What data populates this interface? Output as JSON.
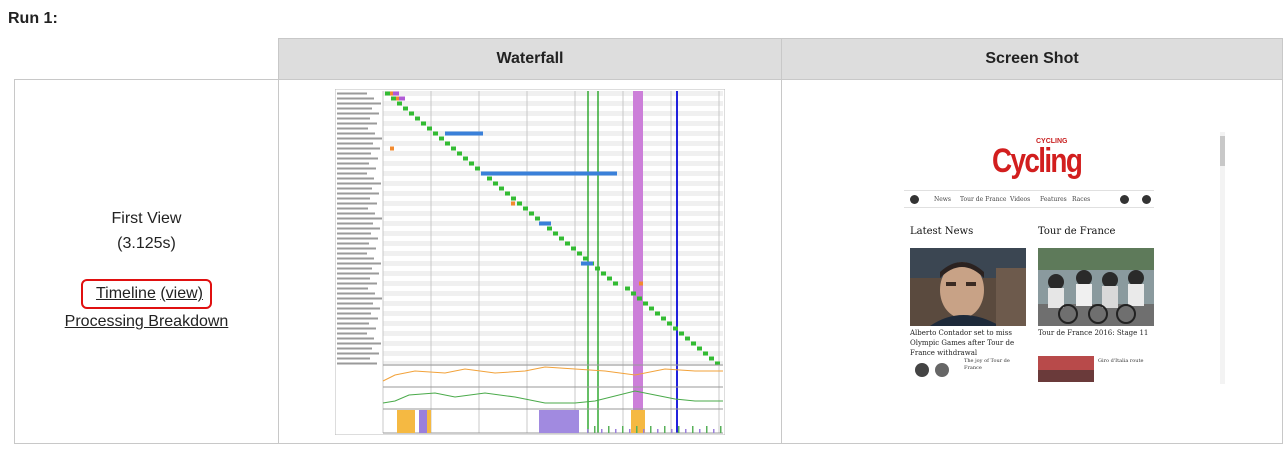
{
  "run": {
    "title": "Run 1:"
  },
  "table": {
    "headers": {
      "waterfall": "Waterfall",
      "screenshot": "Screen Shot"
    }
  },
  "first_view": {
    "label": "First View",
    "time": "(3.125s)",
    "timeline_link": "Timeline",
    "view_link": "(view)",
    "processing_link": "Processing Breakdown"
  },
  "waterfall": {
    "rows": 55,
    "colors": {
      "dns": "#2e9e8e",
      "connect": "#f28a2e",
      "ssl": "#b05bd6",
      "ttfb": "#33bb33",
      "download": "#3a80d9",
      "start_render": "#33aa33",
      "dom_content": "#cc7fd9",
      "onload": "#2222dd",
      "cpu": "#f5b942",
      "bandwidth": "#58b05a"
    }
  },
  "screenshot": {
    "logo_small": "CYCLING",
    "logo_big": "Cycling",
    "nav": [
      "News",
      "Tour de France",
      "Videos",
      "Features",
      "Races"
    ],
    "sections": {
      "latest": "Latest News",
      "tour": "Tour de France"
    },
    "captions": {
      "latest": "Alberto Contador set to miss Olympic Games after Tour de France withdrawal",
      "tour": "Tour de France 2016: Stage 11"
    },
    "mini_items": [
      "The joy of Tour de France",
      "Giro d'Italia route"
    ],
    "colors": {
      "brand": "#d21e1e"
    }
  }
}
